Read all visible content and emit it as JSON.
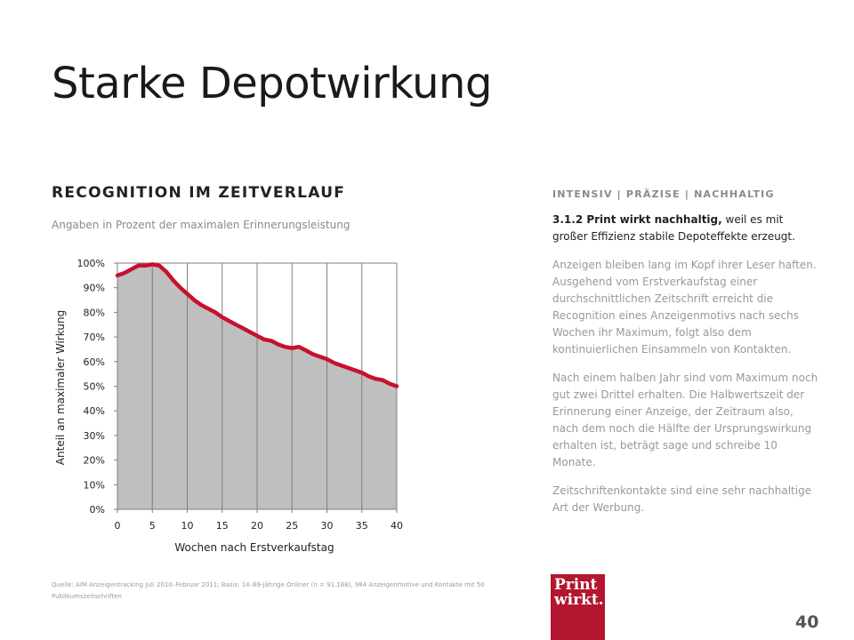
{
  "slide": {
    "title": "Starke Depotwirkung",
    "section_heading": "RECOGNITION IM ZEITVERLAUF",
    "subheading": "Angaben in Prozent der maximalen Erinnerungsleistung",
    "source": "Quelle: AIM Anzeigentracking Juli 2010–Februar 2011; Basis: 14–69-jährige Onliner (n = 91.188), 984 Anzeigenmotive und Kontakte mit 50 Publikumszeitschriften",
    "page_number": "40"
  },
  "sidebar": {
    "kicker": "INTENSIV | PRÄZISE | NACHHALTIG",
    "lead_bold": "3.1.2 Print wirkt nachhaltig,",
    "lead_rest": " weil es mit großer Effizienz stabile Depoteffekte erzeugt.",
    "paragraphs": [
      "Anzeigen bleiben lang im Kopf ihrer Leser haften. Ausgehend vom Erstverkaufstag einer durchschnittlichen Zeitschrift erreicht die Recognition eines Anzeigenmotivs nach sechs Wochen ihr Maximum, folgt also dem kontinuierlichen Einsammeln von Kontakten.",
      "Nach einem halben Jahr sind vom Maximum noch gut zwei Drittel erhalten. Die Halbwertszeit der Erinnerung einer Anzeige, der Zeitraum also, nach dem noch die Hälfte der Ursprungswirkung erhalten ist, beträgt sage und schreibe 10 Monate.",
      "Zeitschriftenkontakte sind eine sehr nachhaltige Art der Werbung."
    ]
  },
  "logo": {
    "line1": "Print",
    "line2": "wirkt."
  },
  "colors": {
    "line": "#c8102e",
    "area": "#bfbfbf",
    "logo_bg": "#b3162e"
  },
  "chart_data": {
    "type": "area",
    "title": "",
    "xlabel": "Wochen nach Erstverkaufstag",
    "ylabel": "Anteil an maximaler Wirkung",
    "xlim": [
      0,
      40
    ],
    "ylim": [
      0,
      100
    ],
    "xticks": [
      0,
      5,
      10,
      15,
      20,
      25,
      30,
      35,
      40
    ],
    "yticks": [
      0,
      10,
      20,
      30,
      40,
      50,
      60,
      70,
      80,
      90,
      100
    ],
    "ytick_labels": [
      "0%",
      "10%",
      "20%",
      "30%",
      "40%",
      "50%",
      "60%",
      "70%",
      "80%",
      "90%",
      "100%"
    ],
    "grid": "vertical",
    "legend": "none",
    "series": [
      {
        "x": [
          0,
          1,
          2,
          3,
          4,
          5,
          6,
          7,
          8,
          9,
          10,
          11,
          12,
          13,
          14,
          15,
          16,
          17,
          18,
          19,
          20,
          21,
          22,
          23,
          24,
          25,
          26,
          27,
          28,
          29,
          30,
          31,
          32,
          33,
          34,
          35,
          36,
          37,
          38,
          39,
          40
        ],
        "values": [
          95,
          96,
          97.5,
          99,
          99,
          99.5,
          99,
          96.5,
          93,
          90,
          87.5,
          85,
          83,
          81.5,
          80,
          78,
          76.5,
          75,
          73.5,
          72,
          70.5,
          69,
          68.5,
          67,
          66,
          65.5,
          66,
          64.5,
          63,
          62,
          61,
          59.5,
          58.5,
          57.5,
          56.5,
          55.5,
          54,
          53,
          52.5,
          51,
          50
        ]
      }
    ]
  }
}
